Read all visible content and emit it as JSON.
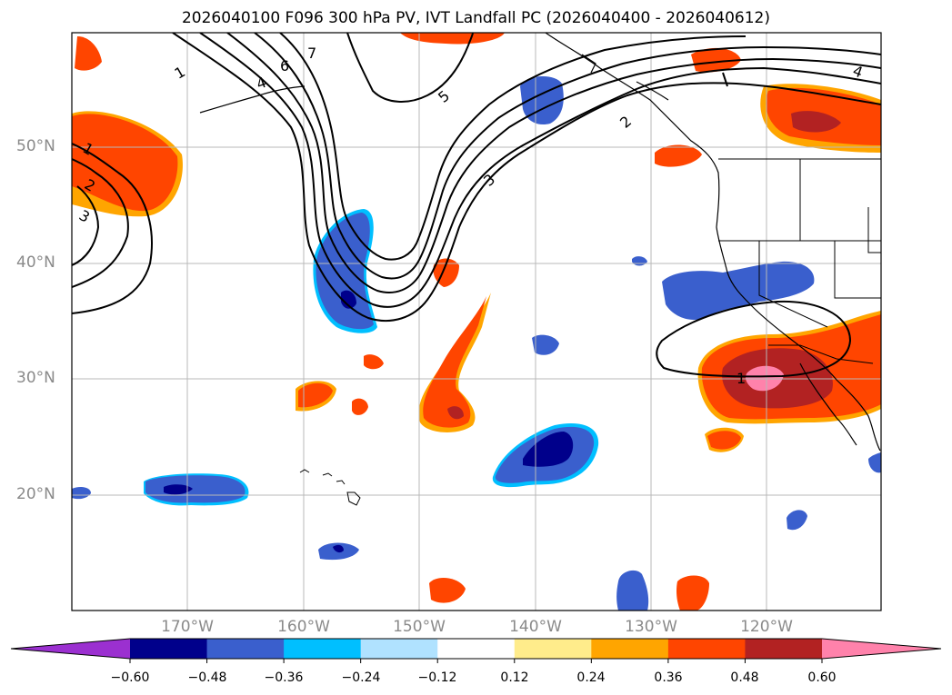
{
  "title": "2026040100 F096 300 hPa PV, IVT Landfall PC (2026040400 - 2026040612)",
  "latitude_labels": [
    "50°N",
    "40°N",
    "30°N",
    "20°N"
  ],
  "longitude_labels": [
    "170°W",
    "160°W",
    "150°W",
    "140°W",
    "130°W",
    "120°W"
  ],
  "contour_labels": [
    "1",
    "2",
    "3",
    "4",
    "5",
    "6",
    "7",
    "1",
    "2",
    "3",
    "5",
    "3",
    "2",
    "4",
    "1"
  ],
  "colorbar": {
    "ticks": [
      "−0.60",
      "−0.48",
      "−0.36",
      "−0.24",
      "−0.12",
      "0.12",
      "0.24",
      "0.36",
      "0.48",
      "0.60"
    ],
    "colors": [
      "#9b30d0",
      "#00008b",
      "#3a5fcd",
      "#00bfff",
      "#b0e2ff",
      "#ffffff",
      "#ffec8b",
      "#ffa500",
      "#ff4500",
      "#b22222",
      "#ff82ab"
    ]
  },
  "colors": {
    "neg_strong": "#00008b",
    "neg_mid": "#3a5fcd",
    "neg_light": "#00bfff",
    "pos_light": "#ffec8b",
    "pos_mid": "#ffa500",
    "pos_strong": "#ff4500",
    "pos_darker": "#b22222",
    "pos_max": "#ff82ab"
  }
}
